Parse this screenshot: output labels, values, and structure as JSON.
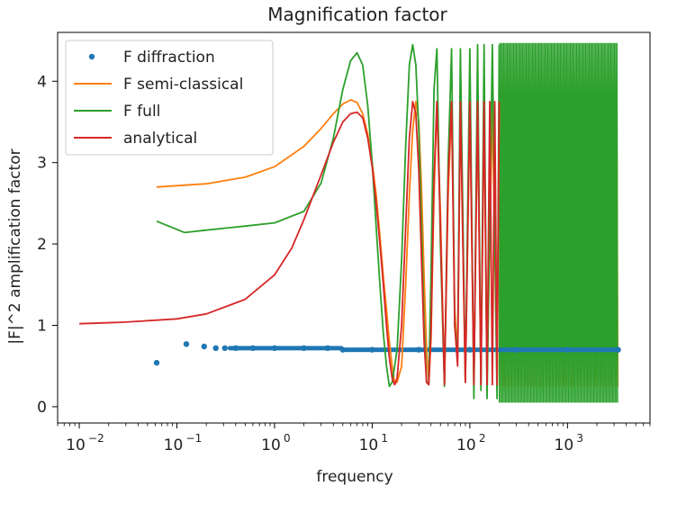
{
  "chart_data": {
    "type": "line",
    "title": "Magnification factor",
    "xlabel": "frequency",
    "ylabel": "|F|^2 amplification factor",
    "xscale": "log",
    "xlim": [
      0.006,
      7000
    ],
    "ylim": [
      -0.2,
      4.6
    ],
    "x_ticks": [
      {
        "value": 0.01,
        "base": "10",
        "exp": "−2"
      },
      {
        "value": 0.1,
        "base": "10",
        "exp": "−1"
      },
      {
        "value": 1,
        "base": "10",
        "exp": "0"
      },
      {
        "value": 10,
        "base": "10",
        "exp": "1"
      },
      {
        "value": 100,
        "base": "10",
        "exp": "2"
      },
      {
        "value": 1000,
        "base": "10",
        "exp": "3"
      }
    ],
    "y_ticks": [
      0,
      1,
      2,
      3,
      4
    ],
    "grid": false,
    "legend_position": "top-left",
    "series": [
      {
        "name": "F diffraction",
        "style": "points",
        "color": "#1f77b4",
        "x": [
          0.062,
          0.125,
          0.19,
          0.25,
          0.31,
          0.4,
          0.6,
          1,
          2,
          3.5,
          5,
          10,
          30,
          100,
          300,
          1000,
          3300
        ],
        "y": [
          0.54,
          0.77,
          0.74,
          0.72,
          0.72,
          0.72,
          0.72,
          0.72,
          0.72,
          0.72,
          0.7,
          0.7,
          0.7,
          0.7,
          0.7,
          0.7,
          0.7
        ]
      },
      {
        "name": "F semi-classical",
        "style": "line",
        "color": "#ff7f0e",
        "x": [
          0.062,
          0.2,
          0.5,
          1,
          2,
          3,
          4,
          5,
          6,
          7,
          8,
          9,
          10,
          11,
          12,
          13,
          14,
          15,
          16,
          17,
          18,
          20,
          22,
          24,
          26,
          28,
          30,
          32,
          34,
          36,
          38,
          40,
          43,
          46,
          50,
          55,
          60,
          65,
          70,
          75,
          80,
          90,
          100,
          110,
          120,
          130,
          140,
          150,
          170,
          190,
          200
        ],
        "y": [
          2.7,
          2.74,
          2.82,
          2.95,
          3.2,
          3.42,
          3.6,
          3.72,
          3.77,
          3.74,
          3.6,
          3.35,
          3.0,
          2.6,
          2.1,
          1.6,
          1.2,
          0.8,
          0.5,
          0.3,
          0.3,
          0.5,
          1.5,
          2.6,
          3.4,
          3.75,
          3.5,
          2.7,
          1.6,
          0.7,
          0.3,
          0.8,
          2.6,
          3.7,
          2.4,
          0.3,
          2.6,
          3.7,
          1.2,
          0.6,
          3.7,
          0.3,
          3.7,
          0.3,
          3.7,
          0.3,
          3.7,
          0.3,
          3.7,
          0.3,
          3.7
        ]
      },
      {
        "name": "F full",
        "style": "line",
        "color": "#2ca02c",
        "x": [
          0.062,
          0.12,
          0.2,
          0.5,
          1,
          2,
          3,
          4,
          5,
          6,
          7,
          8,
          9,
          10,
          11,
          12,
          13,
          14,
          15,
          16,
          18,
          20,
          22,
          24,
          26,
          28,
          30,
          32,
          34,
          36,
          38,
          40,
          43,
          46,
          50,
          55,
          60,
          65,
          70,
          75,
          80,
          90,
          100,
          110,
          120,
          130,
          140,
          150,
          170,
          190,
          200
        ],
        "y": [
          2.28,
          2.14,
          2.17,
          2.22,
          2.26,
          2.4,
          2.75,
          3.3,
          3.9,
          4.25,
          4.35,
          4.2,
          3.7,
          3.0,
          2.2,
          1.5,
          0.9,
          0.5,
          0.25,
          0.3,
          0.7,
          1.8,
          3.2,
          4.2,
          4.45,
          4.2,
          3.4,
          2.2,
          1.0,
          0.3,
          0.3,
          1.6,
          3.9,
          4.4,
          2.0,
          0.25,
          3.0,
          4.4,
          1.0,
          0.6,
          4.4,
          0.3,
          4.4,
          0.1,
          4.45,
          0.2,
          4.45,
          0.1,
          4.45,
          0.1,
          4.45
        ]
      },
      {
        "name": "analytical",
        "style": "line",
        "color": "#d62728",
        "x": [
          0.01,
          0.03,
          0.1,
          0.2,
          0.5,
          1,
          1.5,
          2,
          3,
          4,
          5,
          6,
          7,
          8,
          9,
          10,
          11,
          12,
          13,
          14,
          15,
          16,
          17,
          18,
          20,
          22,
          24,
          26,
          28,
          30,
          32,
          34,
          36,
          38,
          40,
          43,
          46,
          50,
          55,
          60,
          65,
          70,
          75,
          80,
          90,
          100,
          110,
          120,
          130,
          140,
          150,
          160,
          170,
          180,
          190,
          200
        ],
        "y": [
          1.02,
          1.04,
          1.08,
          1.14,
          1.32,
          1.62,
          1.95,
          2.3,
          2.85,
          3.25,
          3.5,
          3.6,
          3.62,
          3.55,
          3.3,
          2.95,
          2.5,
          2.0,
          1.5,
          1.0,
          0.6,
          0.35,
          0.27,
          0.35,
          1.0,
          2.2,
          3.3,
          3.75,
          3.6,
          2.9,
          1.8,
          0.8,
          0.3,
          0.27,
          0.9,
          2.8,
          3.75,
          2.2,
          0.27,
          2.8,
          3.75,
          1.0,
          0.5,
          3.75,
          0.3,
          3.75,
          0.27,
          3.75,
          0.27,
          3.75,
          0.27,
          3.75,
          0.27,
          3.75,
          0.27,
          3.75
        ]
      }
    ]
  }
}
